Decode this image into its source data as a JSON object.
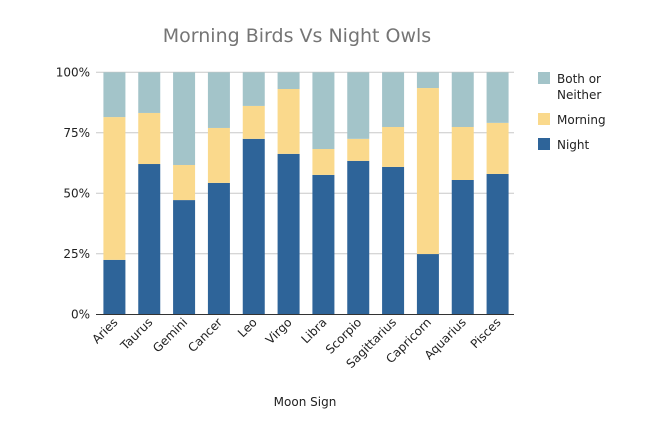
{
  "chart_data": {
    "type": "bar",
    "stacked": true,
    "title": "Morning Birds Vs Night Owls",
    "xlabel": "Moon Sign",
    "ylabel": "",
    "ylim": [
      0,
      100
    ],
    "yticks": [
      "0%",
      "25%",
      "50%",
      "75%",
      "100%"
    ],
    "grid": true,
    "legend_position": "right",
    "categories": [
      "Aries",
      "Taurus",
      "Gemini",
      "Cancer",
      "Leo",
      "Virgo",
      "Libra",
      "Scorpio",
      "Sagittarius",
      "Capricorn",
      "Aquarius",
      "Pisces"
    ],
    "series": [
      {
        "name": "Night",
        "color": "#2e6499",
        "values": [
          22.5,
          62.1,
          47.2,
          54.3,
          72.5,
          66.3,
          57.6,
          63.4,
          60.9,
          24.9,
          55.5,
          58.0
        ]
      },
      {
        "name": "Morning",
        "color": "#fad98c",
        "values": [
          59.0,
          21.1,
          14.5,
          22.7,
          13.6,
          26.8,
          10.7,
          9.1,
          16.5,
          68.6,
          21.9,
          21.1
        ]
      },
      {
        "name": "Both or Neither",
        "color": "#a3c4c9",
        "values": [
          18.5,
          16.8,
          38.3,
          23.0,
          13.9,
          6.9,
          31.7,
          27.5,
          22.6,
          6.5,
          22.6,
          20.9
        ]
      }
    ],
    "legend": [
      "Both or Neither",
      "Morning",
      "Night"
    ]
  }
}
